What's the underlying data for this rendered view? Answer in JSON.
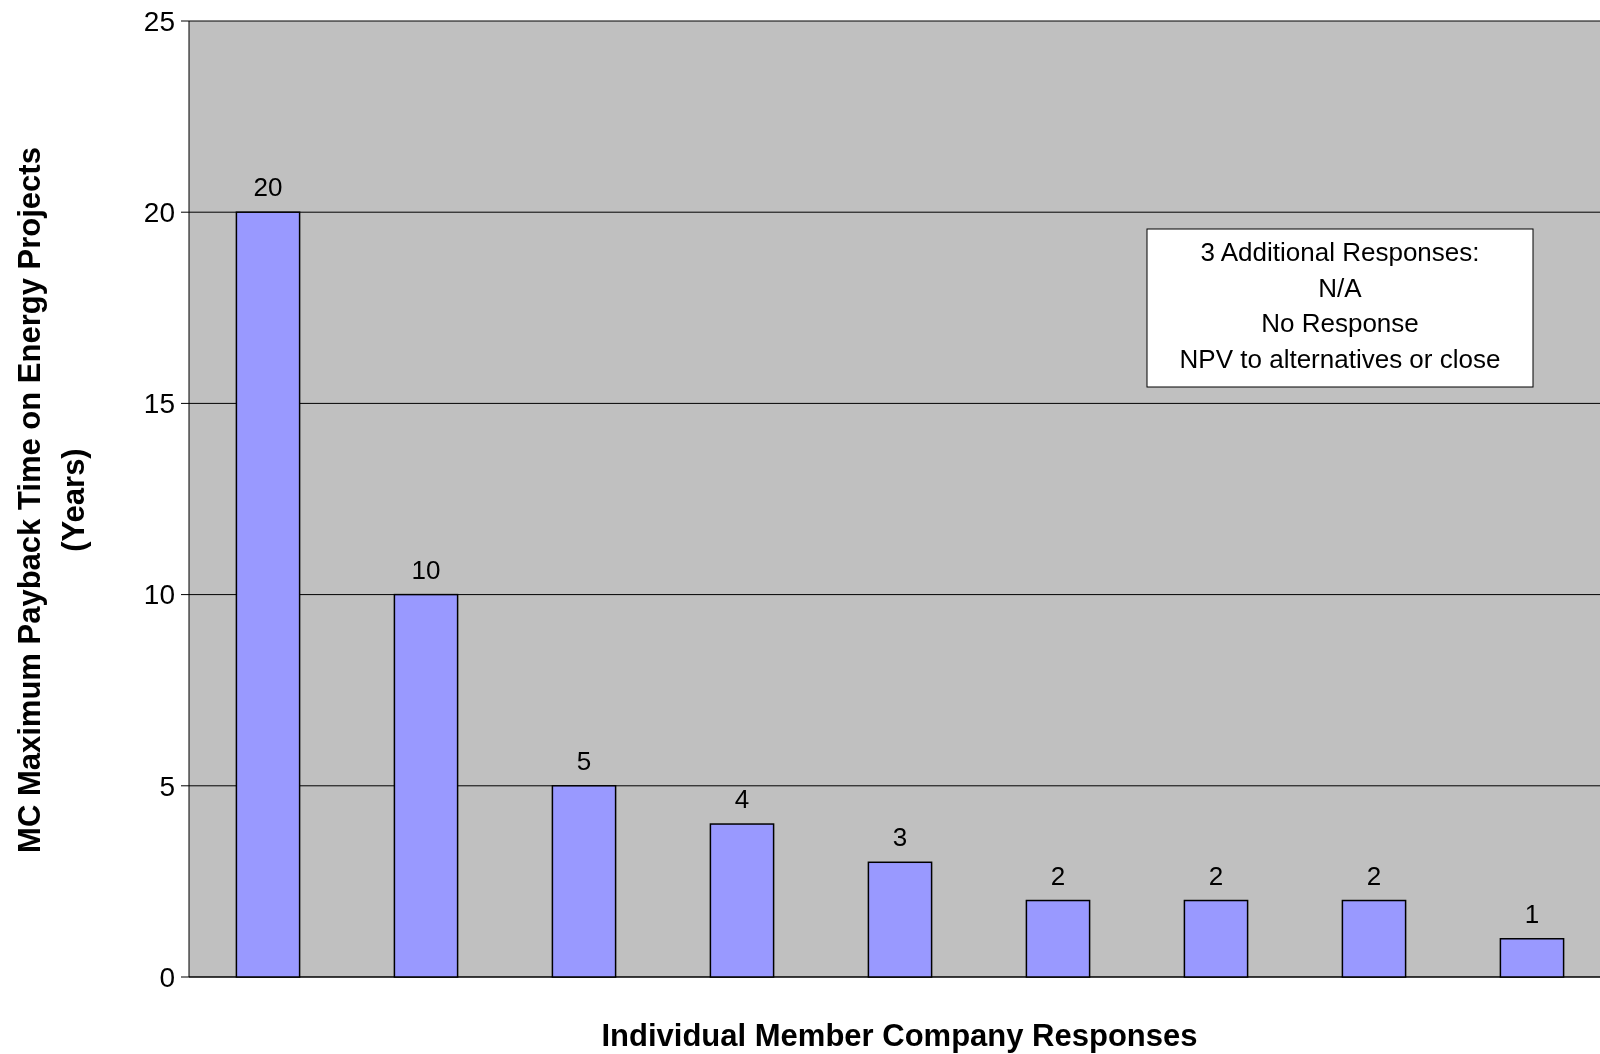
{
  "chart_data": {
    "type": "bar",
    "xlabel": "Individual Member Company Responses",
    "ylabel": "MC Maximum Payback Time on Energy Projects\n(Years)",
    "categories": [
      null,
      null,
      null,
      null,
      null,
      null,
      null,
      null,
      null
    ],
    "values": [
      20,
      10,
      5,
      4,
      3,
      2,
      2,
      2,
      1
    ],
    "color": "#9999ff",
    "ylim": [
      0,
      25
    ],
    "yticks": [
      0,
      5,
      10,
      15,
      20,
      25
    ],
    "grid": "y",
    "data_labels": true,
    "annotations": [
      "3 Additional Responses:",
      "N/A",
      "No Response",
      "NPV to alternatives or close"
    ]
  }
}
